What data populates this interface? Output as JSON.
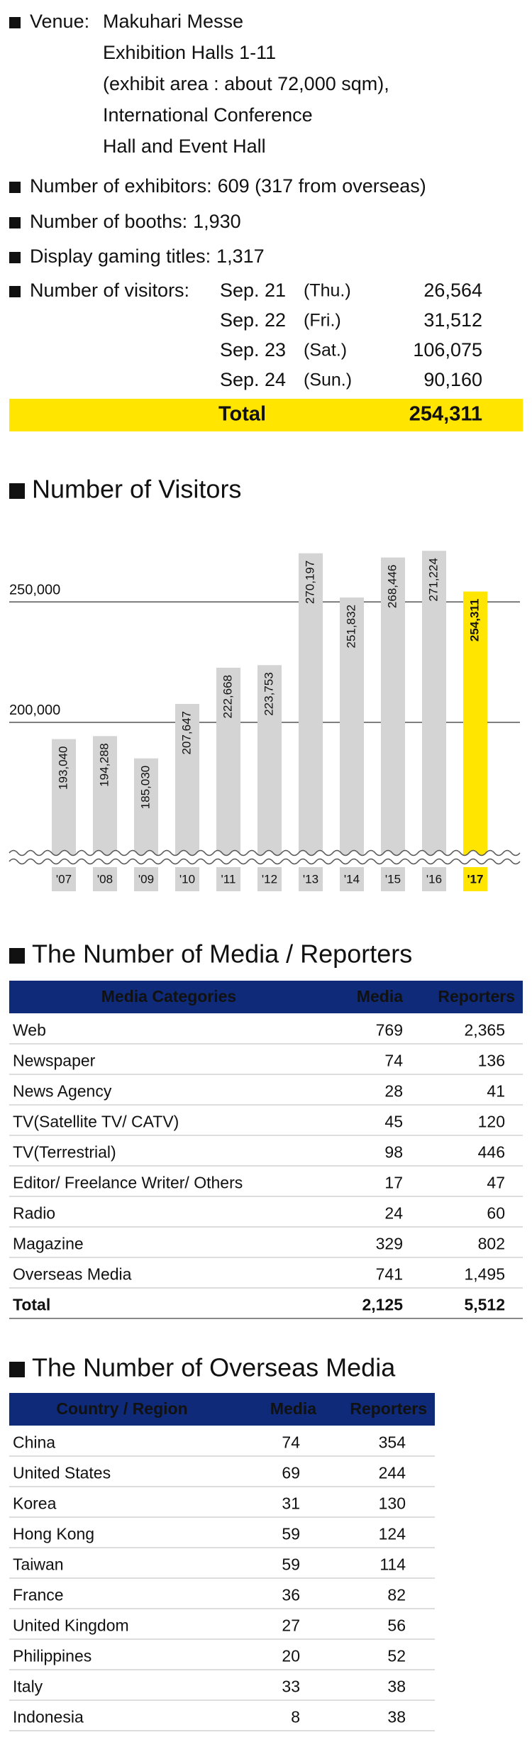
{
  "info": {
    "venue": {
      "label": "Venue:",
      "lines": [
        "Makuhari Messe",
        "Exhibition Halls 1-11",
        "(exhibit area : about 72,000 sqm),",
        "International Conference",
        "Hall and Event Hall"
      ]
    },
    "exhibitors": {
      "label": "Number of exhibitors:",
      "value": "609 (317 from overseas)"
    },
    "booths": {
      "label": "Number of booths:",
      "value": "1,930"
    },
    "titles": {
      "label": "Display gaming titles:",
      "value": "1,317"
    },
    "visitors": {
      "label": "Number of visitors:",
      "days": [
        {
          "date": "Sep. 21",
          "day": "(Thu.)",
          "count": "26,564"
        },
        {
          "date": "Sep. 22",
          "day": "(Fri.)",
          "count": "31,512"
        },
        {
          "date": "Sep. 23",
          "day": "(Sat.)",
          "count": "106,075"
        },
        {
          "date": "Sep. 24",
          "day": "(Sun.)",
          "count": "90,160"
        }
      ],
      "total_label": "Total",
      "total": "254,311"
    }
  },
  "chart_data": {
    "type": "bar",
    "title": "Number of Visitors",
    "categories": [
      "'07",
      "'08",
      "'09",
      "'10",
      "'11",
      "'12",
      "'13",
      "'14",
      "'15",
      "'16",
      "'17"
    ],
    "values": [
      193040,
      194288,
      185030,
      207647,
      222668,
      223753,
      270197,
      251832,
      268446,
      271224,
      254311
    ],
    "value_labels": [
      "193,040",
      "194,288",
      "185,030",
      "207,647",
      "222,668",
      "223,753",
      "270,197",
      "251,832",
      "268,446",
      "271,224",
      "254,311"
    ],
    "color": "#d4d4d4",
    "highlight": {
      "index": 10,
      "color": "#ffe500"
    },
    "ylim": [
      144000,
      276000
    ],
    "yticks": [
      {
        "value": 200000,
        "label": "200,000"
      },
      {
        "value": 250000,
        "label": "250,000"
      }
    ],
    "grid": true
  },
  "media_table": {
    "title": "The Number of Media / Reporters",
    "headers": [
      "Media Categories",
      "Media",
      "Reporters"
    ],
    "rows": [
      [
        "Web",
        "769",
        "2,365"
      ],
      [
        "Newspaper",
        "74",
        "136"
      ],
      [
        "News Agency",
        "28",
        "41"
      ],
      [
        "TV(Satellite TV/ CATV)",
        "45",
        "120"
      ],
      [
        "TV(Terrestrial)",
        "98",
        "446"
      ],
      [
        "Editor/ Freelance Writer/ Others",
        "17",
        "47"
      ],
      [
        "Radio",
        "24",
        "60"
      ],
      [
        "Magazine",
        "329",
        "802"
      ],
      [
        "Overseas Media",
        "741",
        "1,495"
      ]
    ],
    "total": [
      "Total",
      "2,125",
      "5,512"
    ]
  },
  "overseas_table": {
    "title": "The Number of Overseas Media",
    "headers": [
      "Country / Region",
      "Media",
      "Reporters"
    ],
    "rows": [
      [
        "China",
        "74",
        "354"
      ],
      [
        "United States",
        "69",
        "244"
      ],
      [
        "Korea",
        "31",
        "130"
      ],
      [
        "Hong Kong",
        "59",
        "124"
      ],
      [
        "Taiwan",
        "59",
        "114"
      ],
      [
        "France",
        "36",
        "82"
      ],
      [
        "United Kingdom",
        "27",
        "56"
      ],
      [
        "Philippines",
        "20",
        "52"
      ],
      [
        "Italy",
        "33",
        "38"
      ],
      [
        "Indonesia",
        "8",
        "38"
      ]
    ]
  }
}
